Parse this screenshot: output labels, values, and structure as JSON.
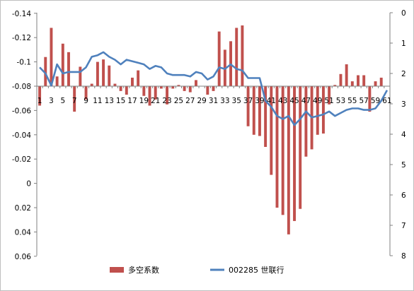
{
  "chart_data": {
    "type": "bar+line",
    "categories": [
      1,
      2,
      3,
      4,
      5,
      6,
      7,
      8,
      9,
      10,
      11,
      12,
      13,
      14,
      15,
      16,
      17,
      18,
      19,
      20,
      21,
      22,
      23,
      24,
      25,
      26,
      27,
      28,
      29,
      30,
      31,
      32,
      33,
      34,
      35,
      36,
      37,
      38,
      39,
      40,
      41,
      42,
      43,
      44,
      45,
      46,
      47,
      48,
      49,
      50,
      51,
      52,
      53,
      54,
      55,
      56,
      57,
      58,
      59,
      60,
      61
    ],
    "category_labels": [
      "1",
      "3",
      "5",
      "7",
      "9",
      "11",
      "13",
      "15",
      "17",
      "19",
      "21",
      "23",
      "25",
      "27",
      "29",
      "31",
      "33",
      "35",
      "37",
      "39",
      "41",
      "43",
      "45",
      "47",
      "49",
      "51",
      "53",
      "55",
      "57",
      "59",
      "61"
    ],
    "series": [
      {
        "name": "多空系数",
        "type": "bar",
        "axis": "left",
        "color": "#C0504D",
        "values": [
          -0.016,
          0.024,
          0.048,
          0.008,
          0.035,
          0.028,
          -0.021,
          0.016,
          -0.011,
          0.002,
          0.02,
          0.022,
          0.017,
          0.002,
          -0.004,
          -0.007,
          0.007,
          0.013,
          -0.008,
          -0.016,
          -0.011,
          -0.002,
          -0.015,
          -0.002,
          0.001,
          -0.004,
          -0.005,
          0.005,
          0.0,
          -0.007,
          -0.004,
          0.045,
          0.03,
          0.037,
          0.048,
          0.05,
          -0.033,
          -0.04,
          -0.041,
          -0.05,
          -0.073,
          -0.1,
          -0.106,
          -0.122,
          -0.111,
          -0.101,
          -0.058,
          -0.052,
          -0.04,
          -0.039,
          -0.015,
          0.001,
          0.01,
          0.018,
          0.004,
          0.009,
          0.009,
          -0.021,
          0.004,
          0.007,
          0.0
        ]
      },
      {
        "name": "002285 世联行",
        "type": "line",
        "axis": "right",
        "color": "#4F81BD",
        "values": [
          6.2,
          6.0,
          5.6,
          6.3,
          6.0,
          6.05,
          6.05,
          6.05,
          6.2,
          6.55,
          6.6,
          6.7,
          6.55,
          6.45,
          6.3,
          6.45,
          6.4,
          6.35,
          6.3,
          6.15,
          6.25,
          6.2,
          6.0,
          5.95,
          5.95,
          5.95,
          5.9,
          6.05,
          6.0,
          5.8,
          5.9,
          6.2,
          6.15,
          6.3,
          6.15,
          6.1,
          5.85,
          5.85,
          5.85,
          5.1,
          4.9,
          4.6,
          4.5,
          4.6,
          4.3,
          4.5,
          4.75,
          4.55,
          4.6,
          4.65,
          4.75,
          4.6,
          4.7,
          4.8,
          4.85,
          4.85,
          4.8,
          4.8,
          4.85,
          5.1,
          5.45
        ]
      }
    ],
    "y_left": {
      "min": -0.14,
      "max": 0.06,
      "step": 0.02,
      "tick_labels": [
        "-0.14",
        "-0.12",
        "-0.1",
        "-0.08",
        "-0.06",
        "-0.04",
        "-0.02",
        "0",
        "0.02",
        "0.04",
        "0.06"
      ]
    },
    "y_right": {
      "min": 0,
      "max": 8,
      "step": 1,
      "tick_labels": [
        "0",
        "1",
        "2",
        "3",
        "4",
        "5",
        "6",
        "7",
        "8"
      ]
    },
    "legend": {
      "position": "bottom",
      "items": [
        {
          "label": "多空系数",
          "color": "#C0504D",
          "kind": "bar"
        },
        {
          "label": "002285 世联行",
          "color": "#4F81BD",
          "kind": "line"
        }
      ]
    },
    "grid": false,
    "title": "",
    "xlabel": "",
    "ylabel": ""
  }
}
